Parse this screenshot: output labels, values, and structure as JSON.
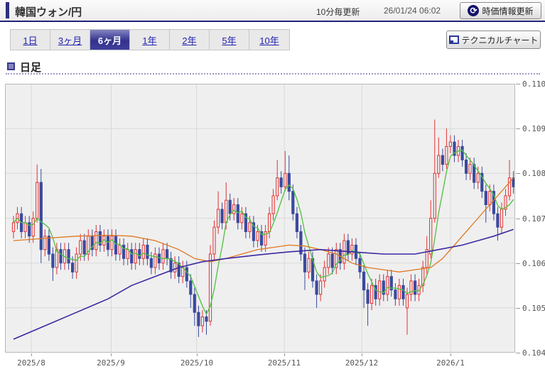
{
  "header": {
    "title": "韓国ウォン/円",
    "update_note": "10分毎更新",
    "timestamp": "26/01/24 06:02",
    "refresh_button": "時価情報更新"
  },
  "icons": {
    "refresh_glyph": "⟳"
  },
  "toolbar": {
    "tabs": [
      {
        "id": "1d",
        "label": "1日",
        "active": false
      },
      {
        "id": "3m",
        "label": "3ヶ月",
        "active": false
      },
      {
        "id": "6m",
        "label": "6ヶ月",
        "active": true
      },
      {
        "id": "1y",
        "label": "1年",
        "active": false
      },
      {
        "id": "2y",
        "label": "2年",
        "active": false
      },
      {
        "id": "5y",
        "label": "5年",
        "active": false
      },
      {
        "id": "10y",
        "label": "10年",
        "active": false
      }
    ],
    "technical_button": "テクニカルチャート"
  },
  "section": {
    "label": "日足"
  },
  "chart_data": {
    "type": "candlestick",
    "title": "韓国ウォン/円 日足 (6ヶ月)",
    "ylim": [
      0.104,
      0.11
    ],
    "grid": true,
    "y_ticks": [
      "0.110",
      "0.109",
      "0.108",
      "0.107",
      "0.106",
      "0.105",
      "0.104"
    ],
    "x_ticks": [
      {
        "label": "2025/8",
        "day_index": 4.5
      },
      {
        "label": "2025/9",
        "day_index": 24.8
      },
      {
        "label": "2025/10",
        "day_index": 46.5
      },
      {
        "label": "2025/11",
        "day_index": 68.8
      },
      {
        "label": "2025/12",
        "day_index": 88.5
      },
      {
        "label": "2026/1",
        "day_index": 111
      }
    ],
    "colors": {
      "up": "#e03232",
      "down": "#3a4a9e",
      "bg": "#efefef",
      "grid": "#d9d9d9",
      "border": "#b9b9b9",
      "ma_short": "#4ec13e",
      "ma_mid": "#e07820",
      "ma_long": "#3c28a0"
    },
    "candles": [
      [
        0.1067,
        0.10705,
        0.10655,
        0.1069
      ],
      [
        0.1069,
        0.10725,
        0.10675,
        0.1071
      ],
      [
        0.1071,
        0.10725,
        0.10655,
        0.1067
      ],
      [
        0.1067,
        0.10705,
        0.10655,
        0.1069
      ],
      [
        0.1069,
        0.10705,
        0.10645,
        0.1066
      ],
      [
        0.1066,
        0.10715,
        0.10645,
        0.107
      ],
      [
        0.107,
        0.1082,
        0.1069,
        0.1078
      ],
      [
        0.1078,
        0.1081,
        0.106,
        0.1063
      ],
      [
        0.1063,
        0.10675,
        0.10615,
        0.1066
      ],
      [
        0.1066,
        0.10675,
        0.10605,
        0.1062
      ],
      [
        0.1062,
        0.10635,
        0.1056,
        0.1059
      ],
      [
        0.1059,
        0.10645,
        0.10575,
        0.1063
      ],
      [
        0.1063,
        0.10645,
        0.10585,
        0.106
      ],
      [
        0.106,
        0.10645,
        0.10585,
        0.1063
      ],
      [
        0.1063,
        0.10645,
        0.10585,
        0.106
      ],
      [
        0.106,
        0.10615,
        0.10565,
        0.1058
      ],
      [
        0.1058,
        0.10635,
        0.10565,
        0.1062
      ],
      [
        0.1062,
        0.10665,
        0.10605,
        0.1065
      ],
      [
        0.1065,
        0.10665,
        0.10605,
        0.1062
      ],
      [
        0.1062,
        0.10675,
        0.10605,
        0.1066
      ],
      [
        0.1066,
        0.10675,
        0.10615,
        0.1063
      ],
      [
        0.1063,
        0.10685,
        0.10615,
        0.1067
      ],
      [
        0.1067,
        0.10685,
        0.10625,
        0.1064
      ],
      [
        0.1064,
        0.10675,
        0.10625,
        0.1066
      ],
      [
        0.1066,
        0.10675,
        0.10615,
        0.1063
      ],
      [
        0.1063,
        0.10675,
        0.10615,
        0.1066
      ],
      [
        0.1066,
        0.10675,
        0.10605,
        0.1062
      ],
      [
        0.1062,
        0.10655,
        0.10605,
        0.1064
      ],
      [
        0.1064,
        0.10655,
        0.10595,
        0.1061
      ],
      [
        0.1061,
        0.10645,
        0.10595,
        0.1063
      ],
      [
        0.1063,
        0.10645,
        0.10585,
        0.106
      ],
      [
        0.106,
        0.10645,
        0.10585,
        0.1063
      ],
      [
        0.1063,
        0.10645,
        0.10595,
        0.1061
      ],
      [
        0.1061,
        0.10655,
        0.10595,
        0.1064
      ],
      [
        0.1064,
        0.10655,
        0.10595,
        0.1061
      ],
      [
        0.1061,
        0.10625,
        0.10575,
        0.1059
      ],
      [
        0.1059,
        0.10635,
        0.10575,
        0.1062
      ],
      [
        0.1062,
        0.10635,
        0.10585,
        0.106
      ],
      [
        0.106,
        0.10645,
        0.10585,
        0.1063
      ],
      [
        0.1063,
        0.10645,
        0.10595,
        0.1061
      ],
      [
        0.1061,
        0.10625,
        0.10565,
        0.1058
      ],
      [
        0.1058,
        0.10615,
        0.10565,
        0.106
      ],
      [
        0.106,
        0.10615,
        0.10555,
        0.1057
      ],
      [
        0.1057,
        0.10605,
        0.10555,
        0.1059
      ],
      [
        0.1059,
        0.10605,
        0.10545,
        0.1056
      ],
      [
        0.1056,
        0.10575,
        0.105,
        0.1053
      ],
      [
        0.1053,
        0.10545,
        0.1046,
        0.1049
      ],
      [
        0.1049,
        0.10505,
        0.10435,
        0.1046
      ],
      [
        0.1046,
        0.10495,
        0.10445,
        0.1048
      ],
      [
        0.1048,
        0.10495,
        0.1044,
        0.1047
      ],
      [
        0.1047,
        0.1064,
        0.1046,
        0.1062
      ],
      [
        0.1062,
        0.10695,
        0.10605,
        0.1068
      ],
      [
        0.1068,
        0.1076,
        0.10665,
        0.1072
      ],
      [
        0.1072,
        0.10735,
        0.10675,
        0.1069
      ],
      [
        0.1069,
        0.1078,
        0.10675,
        0.1074
      ],
      [
        0.1074,
        0.10755,
        0.10695,
        0.1071
      ],
      [
        0.1071,
        0.10745,
        0.10695,
        0.1073
      ],
      [
        0.1073,
        0.10745,
        0.10675,
        0.1069
      ],
      [
        0.1069,
        0.10725,
        0.10675,
        0.1071
      ],
      [
        0.1071,
        0.10725,
        0.10655,
        0.1067
      ],
      [
        0.1067,
        0.10705,
        0.10655,
        0.1069
      ],
      [
        0.1069,
        0.10705,
        0.10635,
        0.1065
      ],
      [
        0.1065,
        0.10685,
        0.10635,
        0.1067
      ],
      [
        0.1067,
        0.10685,
        0.10625,
        0.1064
      ],
      [
        0.1064,
        0.10685,
        0.10625,
        0.1067
      ],
      [
        0.1067,
        0.10725,
        0.10655,
        0.1071
      ],
      [
        0.1071,
        0.10765,
        0.10695,
        0.1075
      ],
      [
        0.1075,
        0.1083,
        0.1074,
        0.1079
      ],
      [
        0.1079,
        0.10805,
        0.10755,
        0.1077
      ],
      [
        0.1077,
        0.1085,
        0.1076,
        0.108
      ],
      [
        0.108,
        0.1084,
        0.1074,
        0.1076
      ],
      [
        0.1076,
        0.10775,
        0.10695,
        0.1071
      ],
      [
        0.1071,
        0.10725,
        0.10655,
        0.1067
      ],
      [
        0.1067,
        0.10685,
        0.10605,
        0.1062
      ],
      [
        0.1062,
        0.10635,
        0.1054,
        0.1058
      ],
      [
        0.1058,
        0.10625,
        0.10565,
        0.1061
      ],
      [
        0.1061,
        0.10625,
        0.10545,
        0.1056
      ],
      [
        0.1056,
        0.10575,
        0.105,
        0.1053
      ],
      [
        0.1053,
        0.10575,
        0.10515,
        0.1056
      ],
      [
        0.1056,
        0.10605,
        0.10545,
        0.1059
      ],
      [
        0.1059,
        0.10635,
        0.10575,
        0.1062
      ],
      [
        0.1062,
        0.10635,
        0.10575,
        0.1059
      ],
      [
        0.1059,
        0.10645,
        0.10575,
        0.1063
      ],
      [
        0.1063,
        0.10645,
        0.10585,
        0.106
      ],
      [
        0.106,
        0.10665,
        0.10585,
        0.1065
      ],
      [
        0.1065,
        0.10665,
        0.10605,
        0.1062
      ],
      [
        0.1062,
        0.10655,
        0.10605,
        0.1064
      ],
      [
        0.1064,
        0.10655,
        0.10595,
        0.1061
      ],
      [
        0.1061,
        0.10625,
        0.10565,
        0.1058
      ],
      [
        0.1058,
        0.10595,
        0.105,
        0.1054
      ],
      [
        0.1054,
        0.10555,
        0.1046,
        0.1051
      ],
      [
        0.1051,
        0.10565,
        0.10495,
        0.1055
      ],
      [
        0.1055,
        0.10565,
        0.10505,
        0.1052
      ],
      [
        0.1052,
        0.10575,
        0.10505,
        0.1056
      ],
      [
        0.1056,
        0.10575,
        0.10515,
        0.1053
      ],
      [
        0.1053,
        0.10585,
        0.10515,
        0.1057
      ],
      [
        0.1057,
        0.10585,
        0.10525,
        0.1054
      ],
      [
        0.1054,
        0.10555,
        0.10505,
        0.1052
      ],
      [
        0.1052,
        0.10565,
        0.10505,
        0.1055
      ],
      [
        0.1055,
        0.10565,
        0.10505,
        0.1052
      ],
      [
        0.105,
        0.10545,
        0.1044,
        0.1053
      ],
      [
        0.1053,
        0.10575,
        0.10515,
        0.1056
      ],
      [
        0.1056,
        0.10575,
        0.10515,
        0.1053
      ],
      [
        0.1053,
        0.10565,
        0.10515,
        0.1055
      ],
      [
        0.1055,
        0.10605,
        0.10535,
        0.1059
      ],
      [
        0.1059,
        0.1066,
        0.10575,
        0.1063
      ],
      [
        0.1062,
        0.1074,
        0.1061,
        0.107
      ],
      [
        0.107,
        0.1092,
        0.1069,
        0.108
      ],
      [
        0.108,
        0.1088,
        0.1079,
        0.1084
      ],
      [
        0.1084,
        0.10855,
        0.10805,
        0.1082
      ],
      [
        0.1082,
        0.109,
        0.1081,
        0.1086
      ],
      [
        0.1086,
        0.10885,
        0.10845,
        0.1087
      ],
      [
        0.1087,
        0.10885,
        0.10825,
        0.1084
      ],
      [
        0.1084,
        0.10875,
        0.10825,
        0.1086
      ],
      [
        0.1086,
        0.10875,
        0.10815,
        0.1083
      ],
      [
        0.1083,
        0.10845,
        0.10785,
        0.108
      ],
      [
        0.108,
        0.10835,
        0.10785,
        0.1082
      ],
      [
        0.1082,
        0.10835,
        0.10765,
        0.1078
      ],
      [
        0.1078,
        0.10815,
        0.10765,
        0.108
      ],
      [
        0.108,
        0.10815,
        0.10745,
        0.1076
      ],
      [
        0.1076,
        0.10775,
        0.1069,
        0.1073
      ],
      [
        0.1073,
        0.10775,
        0.10715,
        0.1076
      ],
      [
        0.1076,
        0.10775,
        0.10695,
        0.1071
      ],
      [
        0.1071,
        0.10725,
        0.1065,
        0.1068
      ],
      [
        0.1068,
        0.10735,
        0.10665,
        0.1072
      ],
      [
        0.1072,
        0.10765,
        0.10705,
        0.1075
      ],
      [
        0.1075,
        0.1083,
        0.1074,
        0.1079
      ],
      [
        0.1079,
        0.10805,
        0.10755,
        0.1077
      ]
    ],
    "ma_series": [
      {
        "name": "ma_short",
        "type": "sma_of_closes",
        "period": 5
      },
      {
        "name": "ma_mid",
        "type": "points",
        "points": [
          [
            0,
            0.1065
          ],
          [
            8,
            0.10655
          ],
          [
            16,
            0.1066
          ],
          [
            24,
            0.10662
          ],
          [
            30,
            0.1066
          ],
          [
            36,
            0.1065
          ],
          [
            42,
            0.1063
          ],
          [
            46,
            0.1061
          ],
          [
            50,
            0.10603
          ],
          [
            54,
            0.1061
          ],
          [
            58,
            0.1062
          ],
          [
            62,
            0.1063
          ],
          [
            66,
            0.10635
          ],
          [
            70,
            0.1064
          ],
          [
            74,
            0.10638
          ],
          [
            78,
            0.1063
          ],
          [
            82,
            0.1062
          ],
          [
            86,
            0.106
          ],
          [
            90,
            0.1059
          ],
          [
            94,
            0.10585
          ],
          [
            98,
            0.1058
          ],
          [
            102,
            0.10585
          ],
          [
            106,
            0.1059
          ],
          [
            109,
            0.1061
          ],
          [
            112,
            0.1064
          ],
          [
            115,
            0.1067
          ],
          [
            118,
            0.107
          ],
          [
            121,
            0.1073
          ],
          [
            124,
            0.1076
          ],
          [
            127,
            0.1079
          ]
        ]
      },
      {
        "name": "ma_long",
        "type": "points",
        "points": [
          [
            0,
            0.1043
          ],
          [
            8,
            0.1046
          ],
          [
            16,
            0.1049
          ],
          [
            24,
            0.1052
          ],
          [
            30,
            0.1055
          ],
          [
            36,
            0.1057
          ],
          [
            42,
            0.1059
          ],
          [
            48,
            0.10603
          ],
          [
            54,
            0.1061
          ],
          [
            62,
            0.10618
          ],
          [
            70,
            0.10625
          ],
          [
            78,
            0.1063
          ],
          [
            86,
            0.10625
          ],
          [
            94,
            0.1062
          ],
          [
            102,
            0.1062
          ],
          [
            108,
            0.1063
          ],
          [
            114,
            0.1064
          ],
          [
            118,
            0.1065
          ],
          [
            122,
            0.1066
          ],
          [
            127,
            0.10675
          ]
        ]
      }
    ]
  }
}
